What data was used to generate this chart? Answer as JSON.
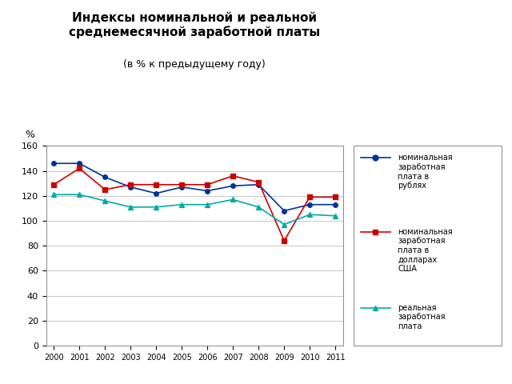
{
  "title_line1": "Индексы номинальной и реальной\nсреднемесячной заработной платы",
  "title_line2": "(в % к предыдущему году)",
  "years": [
    2000,
    2001,
    2002,
    2003,
    2004,
    2005,
    2006,
    2007,
    2008,
    2009,
    2010,
    2011
  ],
  "nominal_rub": [
    146,
    146,
    135,
    127,
    122,
    127,
    124,
    128,
    129,
    108,
    113,
    113
  ],
  "nominal_usd": [
    129,
    142,
    125,
    129,
    129,
    129,
    129,
    136,
    131,
    84,
    119,
    119
  ],
  "real_wage": [
    121,
    121,
    116,
    111,
    111,
    113,
    113,
    117,
    111,
    97,
    105,
    104
  ],
  "color_rub": "#003399",
  "color_usd": "#CC0000",
  "color_real": "#00AAAA",
  "ylabel": "%",
  "ylim_min": 0,
  "ylim_max": 160,
  "ytick_step": 20,
  "legend_rub": "номинальная\nзаработная\nплата в\nрублях",
  "legend_usd": "номинальная\nзаработная\nплата в\nдолларах\nСША",
  "legend_real": "реальная\nзаработная\nплата",
  "background_color": "#FFFFFF",
  "plot_bg_color": "#FFFFFF",
  "grid_color": "#BBBBBB",
  "border_color": "#888888"
}
